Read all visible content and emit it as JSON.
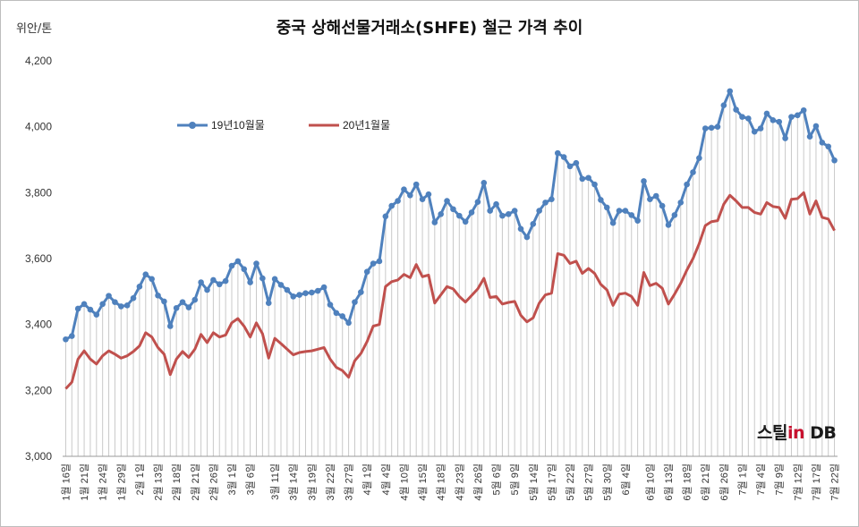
{
  "header": {
    "title": "중국 상해선물거래소(SHFE)  철근 가격 추이",
    "unit": "위안/톤"
  },
  "logo": {
    "text_main": "스틸",
    "text_in": "in",
    "text_db": " DB",
    "accent_color": "#c8102e"
  },
  "chart_data": {
    "type": "line",
    "title": "중국 상해선물거래소(SHFE)  철근 가격 추이",
    "ylabel": "위안/톤",
    "ylim": [
      3000,
      4200
    ],
    "yticks": [
      3000,
      3200,
      3400,
      3600,
      3800,
      4000,
      4200
    ],
    "ytick_labels": [
      "3,000",
      "3,200",
      "3,400",
      "3,600",
      "3,800",
      "4,000",
      "4,200"
    ],
    "grid": "vertical drop lines",
    "legend_position": "top-left",
    "x_tick_labels": [
      "1월 16일",
      "1월 21일",
      "1월 24일",
      "1월 29일",
      "2월 1일",
      "2월 13일",
      "2월 18일",
      "2월 21일",
      "2월 26일",
      "3월 1일",
      "3월 6일",
      "3월 11일",
      "3월 14일",
      "3월 19일",
      "3월 22일",
      "3월 27일",
      "4월 1일",
      "4월 4일",
      "4월 10일",
      "4월 15일",
      "4월 18일",
      "4월 23일",
      "4월 26일",
      "5월 6일",
      "5월 9일",
      "5월 14일",
      "5월 17일",
      "5월 22일",
      "5월 27일",
      "5월 30일",
      "6월 4일",
      "6월 10일",
      "6월 13일",
      "6월 18일",
      "6월 21일",
      "6월 26일",
      "7월 1일",
      "7월 4일",
      "7월 9일",
      "7월 12일",
      "7월 17일",
      "7월 22일"
    ],
    "series": [
      {
        "name": "19년10월물",
        "color": "#4f81bd",
        "marker": "circle",
        "values": [
          3355,
          3365,
          3448,
          3462,
          3445,
          3430,
          3462,
          3487,
          3468,
          3455,
          3458,
          3480,
          3515,
          3552,
          3538,
          3488,
          3470,
          3395,
          3450,
          3468,
          3452,
          3475,
          3528,
          3505,
          3535,
          3522,
          3532,
          3578,
          3592,
          3568,
          3528,
          3585,
          3540,
          3465,
          3538,
          3520,
          3505,
          3485,
          3490,
          3495,
          3497,
          3502,
          3513,
          3460,
          3435,
          3425,
          3405,
          3468,
          3498,
          3560,
          3585,
          3592,
          3728,
          3760,
          3775,
          3810,
          3792,
          3825,
          3780,
          3795,
          3710,
          3735,
          3775,
          3750,
          3730,
          3712,
          3740,
          3772,
          3830,
          3745,
          3765,
          3730,
          3735,
          3745,
          3690,
          3665,
          3705,
          3745,
          3770,
          3780,
          3920,
          3908,
          3880,
          3890,
          3842,
          3845,
          3825,
          3778,
          3755,
          3708,
          3745,
          3745,
          3732,
          3715,
          3835,
          3780,
          3790,
          3760,
          3702,
          3732,
          3770,
          3825,
          3862,
          3905,
          3995,
          3997,
          4000,
          4065,
          4108,
          4052,
          4030,
          4025,
          3985,
          3995,
          4040,
          4020,
          4015,
          3965,
          4030,
          4035,
          4050,
          3970,
          4002,
          3952,
          3940,
          3898
        ]
      },
      {
        "name": "20년1월물",
        "color": "#c0504d",
        "marker": "none",
        "values": [
          3205,
          3225,
          3295,
          3320,
          3295,
          3280,
          3305,
          3320,
          3310,
          3298,
          3305,
          3318,
          3335,
          3375,
          3362,
          3330,
          3310,
          3248,
          3295,
          3318,
          3300,
          3325,
          3370,
          3345,
          3375,
          3362,
          3368,
          3405,
          3418,
          3395,
          3362,
          3405,
          3372,
          3298,
          3358,
          3342,
          3325,
          3308,
          3315,
          3318,
          3320,
          3325,
          3330,
          3295,
          3270,
          3260,
          3240,
          3290,
          3312,
          3348,
          3395,
          3400,
          3515,
          3530,
          3535,
          3552,
          3542,
          3582,
          3545,
          3550,
          3465,
          3490,
          3515,
          3508,
          3485,
          3468,
          3488,
          3508,
          3540,
          3482,
          3485,
          3462,
          3467,
          3470,
          3428,
          3408,
          3420,
          3465,
          3490,
          3495,
          3615,
          3610,
          3585,
          3592,
          3555,
          3570,
          3555,
          3522,
          3505,
          3458,
          3492,
          3495,
          3485,
          3458,
          3558,
          3518,
          3525,
          3510,
          3462,
          3492,
          3525,
          3565,
          3600,
          3645,
          3700,
          3712,
          3715,
          3765,
          3792,
          3775,
          3755,
          3755,
          3740,
          3735,
          3770,
          3758,
          3755,
          3722,
          3780,
          3782,
          3800,
          3735,
          3775,
          3725,
          3720,
          3685
        ]
      }
    ]
  }
}
